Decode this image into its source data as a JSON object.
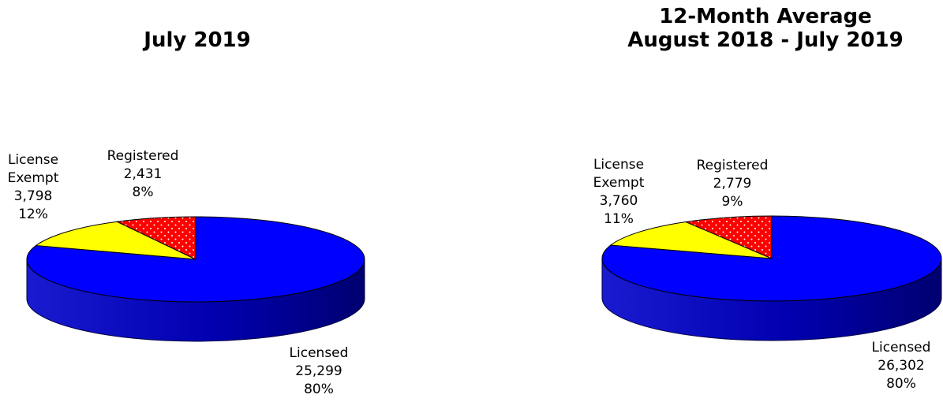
{
  "chart_data": [
    {
      "type": "pie",
      "title_lines": [
        "July 2019"
      ],
      "slices": [
        {
          "label_lines": [
            "Licensed"
          ],
          "value": 25299,
          "value_text": "25,299",
          "percent_text": "80%",
          "color": "#0000ff",
          "side_color": "#00009a",
          "pattern": "none"
        },
        {
          "label_lines": [
            "License",
            "Exempt"
          ],
          "value": 3798,
          "value_text": "3,798",
          "percent_text": "12%",
          "color": "#ffff00",
          "side_color": "#b0b000",
          "pattern": "none"
        },
        {
          "label_lines": [
            "Registered"
          ],
          "value": 2431,
          "value_text": "2,431",
          "percent_text": "8%",
          "color": "#ff0000",
          "side_color": "#a00000",
          "pattern": "dots"
        }
      ]
    },
    {
      "type": "pie",
      "title_lines": [
        "12-Month Average",
        "August 2018 - July 2019"
      ],
      "slices": [
        {
          "label_lines": [
            "Licensed"
          ],
          "value": 26302,
          "value_text": "26,302",
          "percent_text": "80%",
          "color": "#0000ff",
          "side_color": "#00009a",
          "pattern": "none"
        },
        {
          "label_lines": [
            "License",
            "Exempt"
          ],
          "value": 3760,
          "value_text": "3,760",
          "percent_text": "11%",
          "color": "#ffff00",
          "side_color": "#b0b000",
          "pattern": "none"
        },
        {
          "label_lines": [
            "Registered"
          ],
          "value": 2779,
          "value_text": "2,779",
          "percent_text": "9%",
          "color": "#ff0000",
          "side_color": "#a00000",
          "pattern": "dots"
        }
      ]
    }
  ]
}
